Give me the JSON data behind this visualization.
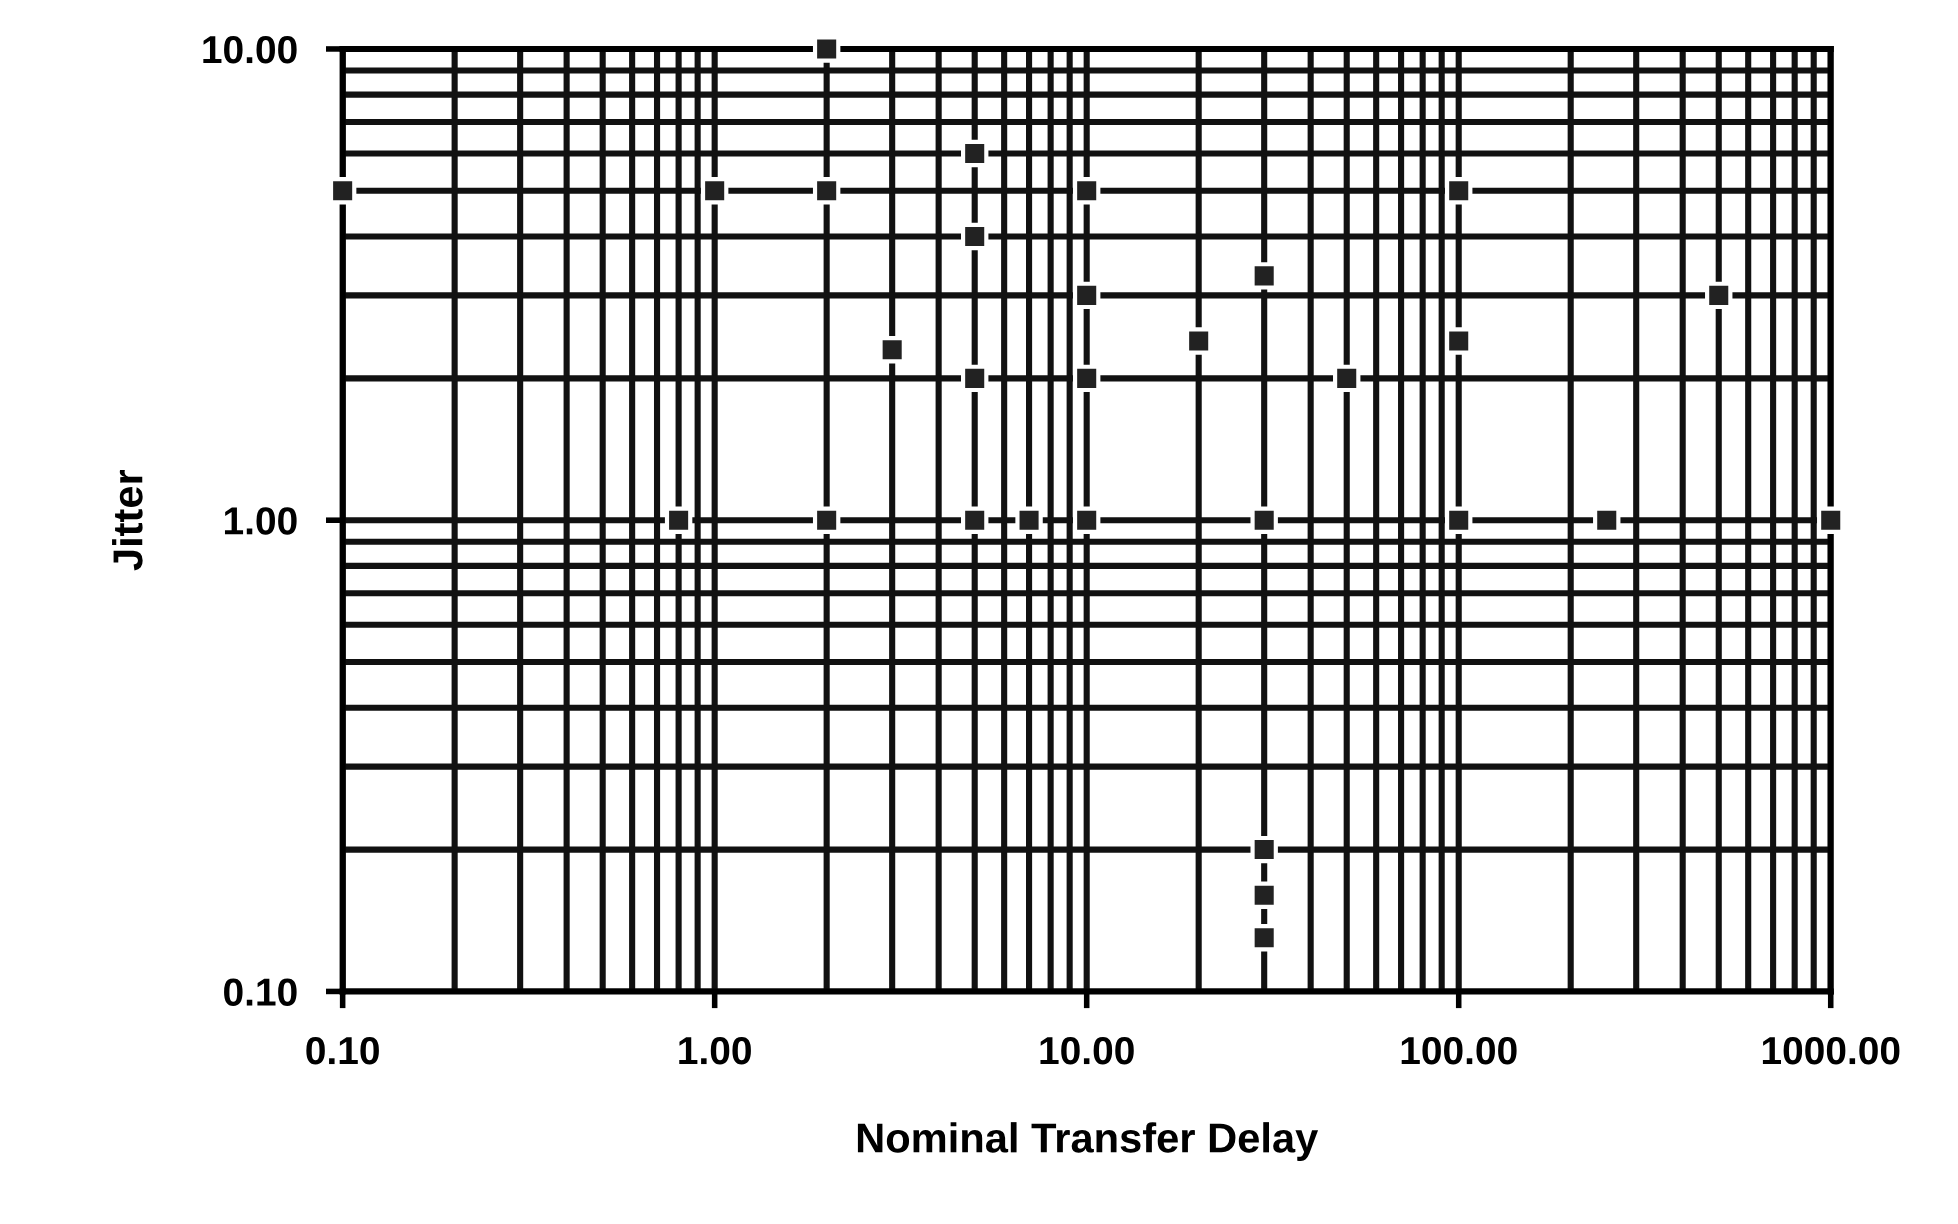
{
  "chart_data": {
    "type": "scatter",
    "xlabel": "Nominal Transfer Delay",
    "ylabel": "Jitter",
    "x": [
      0.1,
      0.8,
      1,
      2,
      2,
      2,
      3,
      5,
      5,
      5,
      5,
      7,
      10,
      10,
      10,
      10,
      20,
      30,
      30,
      30,
      30,
      30,
      50,
      100,
      100,
      100,
      250,
      500,
      1000
    ],
    "series": [
      {
        "color": "#222222",
        "values": [
          5,
          1,
          5,
          10,
          5,
          1,
          2.3,
          6,
          4,
          2,
          1,
          1,
          5,
          3,
          2,
          1,
          2.4,
          3.3,
          1,
          0.2,
          0.16,
          0.13,
          2,
          5,
          2.4,
          1,
          1,
          3,
          1
        ]
      }
    ],
    "log": "xy",
    "marker": "square",
    "grid": true,
    "xlim": [
      0.1,
      1000
    ],
    "ylim": [
      0.1,
      10
    ],
    "xticks": [
      {
        "value": 0.1,
        "label": "0.10"
      },
      {
        "value": 1,
        "label": "1.00"
      },
      {
        "value": 10,
        "label": "10.00"
      },
      {
        "value": 100,
        "label": "100.00"
      },
      {
        "value": 1000,
        "label": "1000.00"
      }
    ],
    "yticks": [
      {
        "value": 0.1,
        "label": "0.10"
      },
      {
        "value": 1,
        "label": "1.00"
      },
      {
        "value": 10,
        "label": "10.00"
      }
    ]
  }
}
